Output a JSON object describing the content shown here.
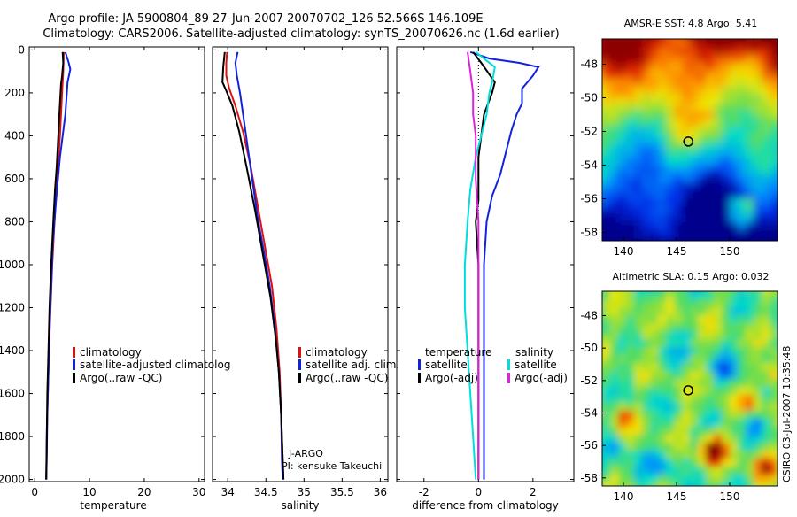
{
  "figure": {
    "title_line1": "Argo profile: JA 5900804_89 27-Jun-2007 20070702_126 52.566S 146.109E",
    "title_line2": "Climatology: CARS2006. Satellite-adjusted climatology: synTS_20070626.nc (1.6d earlier)",
    "side_caption": "CSIRO 03-Jul-2007 10:35:48"
  },
  "colors": {
    "climatology": "#dd1111",
    "satellite": "#1122dd",
    "argo": "#000000",
    "sal_satellite": "#00dddd",
    "sal_argo": "#dd22dd"
  },
  "chart_data": [
    {
      "type": "line",
      "panel": "temperature",
      "xlabel": "temperature",
      "ylabel": "",
      "xlim": [
        -1,
        31
      ],
      "ylim": [
        2000,
        0
      ],
      "xticks": [
        "0",
        "10",
        "20",
        "30"
      ],
      "xtick_values": [
        0,
        10,
        20,
        30
      ],
      "yticks": [
        "0",
        "200",
        "400",
        "600",
        "800",
        "1000",
        "1200",
        "1400",
        "1600",
        "1800",
        "2000"
      ],
      "ytick_values": [
        0,
        200,
        400,
        600,
        800,
        1000,
        1200,
        1400,
        1600,
        1800,
        2000
      ],
      "legend": [
        "climatology",
        "satellite-adjusted climatolog",
        "Argo(..raw -QC)"
      ],
      "series": [
        {
          "name": "climatology",
          "color_key": "climatology",
          "points": [
            [
              5.3,
              10
            ],
            [
              5.2,
              100
            ],
            [
              5.0,
              200
            ],
            [
              4.6,
              400
            ],
            [
              4.1,
              600
            ],
            [
              3.6,
              800
            ],
            [
              3.2,
              1000
            ],
            [
              2.9,
              1200
            ],
            [
              2.6,
              1400
            ],
            [
              2.4,
              1600
            ],
            [
              2.2,
              1800
            ],
            [
              2.1,
              2000
            ]
          ]
        },
        {
          "name": "satellite-adjusted climatolog",
          "color_key": "satellite",
          "points": [
            [
              5.6,
              10
            ],
            [
              6.2,
              60
            ],
            [
              6.5,
              90
            ],
            [
              6.0,
              150
            ],
            [
              5.6,
              300
            ],
            [
              4.6,
              500
            ],
            [
              3.9,
              700
            ],
            [
              3.3,
              900
            ],
            [
              3.0,
              1100
            ],
            [
              2.7,
              1300
            ],
            [
              2.5,
              1500
            ],
            [
              2.3,
              1700
            ],
            [
              2.2,
              1900
            ],
            [
              2.1,
              2000
            ]
          ]
        },
        {
          "name": "Argo(..raw -QC)",
          "color_key": "argo",
          "points": [
            [
              5.1,
              10
            ],
            [
              5.2,
              60
            ],
            [
              5.0,
              120
            ],
            [
              4.8,
              160
            ],
            [
              4.6,
              250
            ],
            [
              4.4,
              350
            ],
            [
              4.2,
              450
            ],
            [
              4.0,
              550
            ],
            [
              3.7,
              650
            ],
            [
              3.4,
              800
            ],
            [
              3.0,
              1000
            ],
            [
              2.7,
              1200
            ],
            [
              2.5,
              1400
            ],
            [
              2.3,
              1600
            ],
            [
              2.2,
              1800
            ],
            [
              2.1,
              2000
            ]
          ]
        }
      ]
    },
    {
      "type": "line",
      "panel": "salinity",
      "xlabel": "salinity",
      "ylabel": "",
      "xlim": [
        33.8,
        36.1
      ],
      "ylim": [
        2000,
        0
      ],
      "xticks": [
        "34",
        "34.5",
        "35",
        "35.5",
        "36"
      ],
      "xtick_values": [
        34,
        34.5,
        35,
        35.5,
        36
      ],
      "legend": [
        "climatology",
        "satellite adj. clim.",
        "Argo(..raw -QC)"
      ],
      "annotations": [
        "J-ARGO",
        "PI: kensuke Takeuchi"
      ],
      "series": [
        {
          "name": "climatology",
          "color_key": "climatology",
          "points": [
            [
              33.99,
              10
            ],
            [
              33.98,
              60
            ],
            [
              33.98,
              120
            ],
            [
              34.02,
              180
            ],
            [
              34.1,
              260
            ],
            [
              34.2,
              380
            ],
            [
              34.3,
              540
            ],
            [
              34.38,
              700
            ],
            [
              34.48,
              900
            ],
            [
              34.58,
              1100
            ],
            [
              34.64,
              1300
            ],
            [
              34.68,
              1500
            ],
            [
              34.7,
              1700
            ],
            [
              34.72,
              1900
            ],
            [
              34.73,
              2000
            ]
          ]
        },
        {
          "name": "satellite adj. clim.",
          "color_key": "satellite",
          "points": [
            [
              34.13,
              10
            ],
            [
              34.1,
              60
            ],
            [
              34.12,
              120
            ],
            [
              34.16,
              200
            ],
            [
              34.22,
              350
            ],
            [
              34.28,
              500
            ],
            [
              34.34,
              650
            ],
            [
              34.4,
              800
            ],
            [
              34.48,
              950
            ],
            [
              34.55,
              1100
            ],
            [
              34.62,
              1300
            ],
            [
              34.67,
              1500
            ],
            [
              34.7,
              1700
            ],
            [
              34.71,
              1900
            ],
            [
              34.72,
              2000
            ]
          ]
        },
        {
          "name": "Argo(..raw -QC)",
          "color_key": "argo",
          "points": [
            [
              33.96,
              10
            ],
            [
              33.94,
              80
            ],
            [
              33.93,
              150
            ],
            [
              33.98,
              190
            ],
            [
              34.06,
              260
            ],
            [
              34.15,
              380
            ],
            [
              34.25,
              550
            ],
            [
              34.36,
              750
            ],
            [
              34.46,
              950
            ],
            [
              34.56,
              1150
            ],
            [
              34.63,
              1350
            ],
            [
              34.67,
              1500
            ],
            [
              34.7,
              1700
            ],
            [
              34.72,
              1900
            ],
            [
              34.73,
              2000
            ]
          ]
        }
      ]
    },
    {
      "type": "line",
      "panel": "difference",
      "xlabel": "difference from climatology",
      "ylabel": "",
      "xlim": [
        -3,
        3.5
      ],
      "ylim": [
        2000,
        0
      ],
      "xticks": [
        "-2",
        "0",
        "2"
      ],
      "xtick_values": [
        -2,
        0,
        2
      ],
      "legend_headers": [
        "temperature",
        "salinity"
      ],
      "legend": [
        "satellite",
        "Argo(-adj)",
        "satellite",
        "Argo(-adj)"
      ],
      "series": [
        {
          "name": "satellite",
          "legend_group": "temperature",
          "color_key": "satellite",
          "points": [
            [
              -0.3,
              10
            ],
            [
              0.4,
              40
            ],
            [
              1.5,
              60
            ],
            [
              2.2,
              80
            ],
            [
              2.0,
              120
            ],
            [
              1.6,
              180
            ],
            [
              1.6,
              250
            ],
            [
              1.4,
              300
            ],
            [
              1.2,
              380
            ],
            [
              1.0,
              480
            ],
            [
              0.8,
              580
            ],
            [
              0.5,
              680
            ],
            [
              0.3,
              800
            ],
            [
              0.2,
              1000
            ],
            [
              0.2,
              1500
            ],
            [
              0.2,
              2000
            ]
          ]
        },
        {
          "name": "Argo(-adj)",
          "legend_group": "temperature",
          "color_key": "argo",
          "points": [
            [
              -0.2,
              10
            ],
            [
              0.1,
              60
            ],
            [
              0.6,
              150
            ],
            [
              0.5,
              200
            ],
            [
              0.2,
              300
            ],
            [
              0.1,
              400
            ],
            [
              0.0,
              500
            ],
            [
              0.0,
              700
            ],
            [
              -0.1,
              800
            ],
            [
              0.0,
              1000
            ],
            [
              0.0,
              1500
            ],
            [
              0.0,
              2000
            ]
          ]
        },
        {
          "name": "satellite",
          "legend_group": "salinity",
          "color_key": "sal_satellite",
          "points": [
            [
              -0.1,
              10
            ],
            [
              0.6,
              80
            ],
            [
              0.5,
              150
            ],
            [
              0.4,
              200
            ],
            [
              0.3,
              300
            ],
            [
              0.1,
              400
            ],
            [
              -0.1,
              500
            ],
            [
              -0.3,
              650
            ],
            [
              -0.4,
              800
            ],
            [
              -0.5,
              1000
            ],
            [
              -0.5,
              1200
            ],
            [
              -0.4,
              1400
            ],
            [
              -0.3,
              1600
            ],
            [
              -0.2,
              1800
            ],
            [
              -0.1,
              2000
            ]
          ]
        },
        {
          "name": "Argo(-adj)",
          "legend_group": "salinity",
          "color_key": "sal_argo",
          "points": [
            [
              -0.4,
              10
            ],
            [
              -0.3,
              100
            ],
            [
              -0.2,
              200
            ],
            [
              -0.2,
              300
            ],
            [
              -0.1,
              400
            ],
            [
              -0.1,
              500
            ],
            [
              -0.1,
              600
            ],
            [
              0.0,
              800
            ],
            [
              0.0,
              1000
            ],
            [
              0.0,
              2000
            ]
          ]
        }
      ]
    },
    {
      "type": "heatmap",
      "panel": "sst_map",
      "title": "AMSR-E SST: 4.8 Argo: 5.41",
      "xticks": [
        "140",
        "145",
        "150"
      ],
      "xtick_values": [
        140,
        145,
        150
      ],
      "yticks": [
        "-48",
        "-50",
        "-52",
        "-54",
        "-56",
        "-58"
      ],
      "ytick_values": [
        -48,
        -50,
        -52,
        -54,
        -56,
        -58
      ],
      "xlim": [
        138,
        154.5
      ],
      "ylim": [
        -46.5,
        -58.5
      ],
      "argo_position": [
        146.1,
        -52.6
      ]
    },
    {
      "type": "heatmap",
      "panel": "sla_map",
      "title": "Altimetric SLA: 0.15 Argo: 0.032",
      "xticks": [
        "140",
        "145",
        "150"
      ],
      "xtick_values": [
        140,
        145,
        150
      ],
      "yticks": [
        "-48",
        "-50",
        "-52",
        "-54",
        "-56",
        "-58"
      ],
      "ytick_values": [
        -48,
        -50,
        -52,
        -54,
        -56,
        -58
      ],
      "xlim": [
        138,
        154.5
      ],
      "ylim": [
        -46.5,
        -58.5
      ],
      "argo_position": [
        146.1,
        -52.6
      ]
    }
  ]
}
